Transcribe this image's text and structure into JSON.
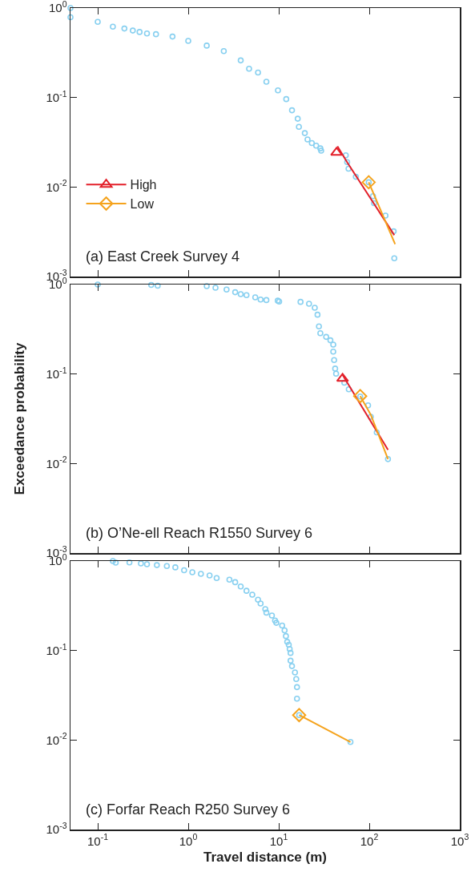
{
  "chart_data": [
    {
      "type": "scatter",
      "log": "xy",
      "grid": false,
      "legend": "bottom left",
      "tick_labels": "y",
      "xlim": [
        0.05,
        1000
      ],
      "ylim": [
        0.001,
        1
      ],
      "xticks": [
        {
          "value": 0.1,
          "label": null
        },
        {
          "value": 1,
          "label": null
        },
        {
          "value": 10,
          "label": null
        },
        {
          "value": 100,
          "label": null
        },
        {
          "value": 1000,
          "label": null
        }
      ],
      "yticks": [
        {
          "value": 0.001,
          "label": "10$^{-3}$"
        },
        {
          "value": 0.01,
          "label": "10$^{-2}$"
        },
        {
          "value": 0.1,
          "label": "10$^{-1}$"
        },
        {
          "value": 1,
          "label": "10$^{0}$"
        }
      ],
      "annotations": [
        "(a) East Creek Survey 4"
      ],
      "series": [
        {
          "type": "scatter",
          "marker": "circle",
          "color": "#88d0f0",
          "x": [
            0.05,
            0.05,
            0.1,
            0.147,
            0.197,
            0.244,
            0.29,
            0.35,
            0.44,
            0.67,
            1,
            1.6,
            2.47,
            3.8,
            4.7,
            5.9,
            7.3,
            9.8,
            12.1,
            14,
            16.2,
            16.7,
            19.4,
            20.8,
            23.2,
            25.9,
            28.8,
            29.4,
            55,
            57,
            59,
            71,
            98.6,
            110,
            113,
            151,
            186,
            189
          ],
          "values": [
            1,
            0.79,
            0.7,
            0.62,
            0.59,
            0.56,
            0.54,
            0.52,
            0.51,
            0.48,
            0.43,
            0.38,
            0.33,
            0.26,
            0.21,
            0.19,
            0.15,
            0.12,
            0.096,
            0.072,
            0.058,
            0.047,
            0.04,
            0.034,
            0.031,
            0.029,
            0.027,
            0.0255,
            0.0226,
            0.019,
            0.016,
            0.013,
            0.0113,
            0.0079,
            0.0066,
            0.0048,
            0.0032,
            0.0016
          ]
        },
        {
          "type": "scatter",
          "name": "High",
          "marker": "triangle",
          "color": "#e3202a",
          "x": [
            43.5
          ],
          "values": [
            0.0243
          ]
        },
        {
          "type": "line",
          "color": "#e3202a",
          "x": [
            44.5,
            57,
            189
          ],
          "values": [
            0.0285,
            0.0189,
            0.0029
          ]
        },
        {
          "type": "scatter",
          "name": "Low",
          "marker": "diamond",
          "color": "#f5a31d",
          "x": [
            98.6
          ],
          "values": [
            0.0113
          ]
        },
        {
          "type": "line",
          "color": "#f5a31d",
          "x": [
            98.6,
            193
          ],
          "values": [
            0.0113,
            0.0023
          ]
        }
      ]
    },
    {
      "type": "scatter",
      "log": "xy",
      "grid": false,
      "legend": false,
      "tick_labels": "y",
      "xlim": [
        0.05,
        1000
      ],
      "ylim": [
        0.001,
        1
      ],
      "ylabel": "Exceedance probability",
      "xticks": [
        {
          "value": 0.1,
          "label": null
        },
        {
          "value": 1,
          "label": null
        },
        {
          "value": 10,
          "label": null
        },
        {
          "value": 100,
          "label": null
        },
        {
          "value": 1000,
          "label": null
        }
      ],
      "yticks": [
        {
          "value": 0.001,
          "label": "10$^{-3}$"
        },
        {
          "value": 0.01,
          "label": "10$^{-2}$"
        },
        {
          "value": 0.1,
          "label": "10$^{-1}$"
        },
        {
          "value": 1,
          "label": "10$^{0}$"
        }
      ],
      "annotations": [
        "(b) O’Ne-ell Reach R1550 Survey 6"
      ],
      "series": [
        {
          "type": "scatter",
          "marker": "circle",
          "color": "#88d0f0",
          "x": [
            0.1,
            0.39,
            0.46,
            1.6,
            2,
            2.65,
            3.3,
            3.8,
            4.4,
            5.5,
            6.3,
            7.3,
            9.75,
            10.1,
            17.4,
            21.6,
            25,
            26.8,
            27.8,
            28.8,
            33.4,
            37.2,
            40,
            40,
            40.9,
            42,
            43,
            53,
            59.4,
            79.4,
            97,
            104,
            121,
            161
          ],
          "values": [
            1,
            0.99,
            0.97,
            0.96,
            0.92,
            0.88,
            0.82,
            0.78,
            0.76,
            0.72,
            0.68,
            0.67,
            0.66,
            0.645,
            0.64,
            0.61,
            0.55,
            0.46,
            0.34,
            0.286,
            0.26,
            0.238,
            0.213,
            0.178,
            0.143,
            0.115,
            0.101,
            0.08,
            0.0675,
            0.056,
            0.0446,
            0.0333,
            0.0223,
            0.0112
          ]
        },
        {
          "type": "scatter",
          "marker": "triangle",
          "color": "#e3202a",
          "x": [
            50.7
          ],
          "values": [
            0.089
          ]
        },
        {
          "type": "line",
          "color": "#e3202a",
          "x": [
            50.7,
            161
          ],
          "values": [
            0.098,
            0.0142
          ]
        },
        {
          "type": "scatter",
          "marker": "diamond",
          "color": "#f5a31d",
          "x": [
            79.4
          ],
          "values": [
            0.0567
          ]
        },
        {
          "type": "line",
          "color": "#f5a31d",
          "x": [
            79.4,
            104,
            161
          ],
          "values": [
            0.0567,
            0.035,
            0.0112
          ]
        }
      ]
    },
    {
      "type": "scatter",
      "log": "xy",
      "grid": false,
      "legend": false,
      "xlim": [
        0.05,
        1000
      ],
      "ylim": [
        0.001,
        1
      ],
      "xlabel": "Travel distance (m)",
      "xticks": [
        {
          "value": 0.1,
          "label": "10$^{-1}$"
        },
        {
          "value": 1,
          "label": "10$^{0}$"
        },
        {
          "value": 10,
          "label": "10$^{1}$"
        },
        {
          "value": 100,
          "label": "10$^{2}$"
        },
        {
          "value": 1000,
          "label": "10$^{3}$"
        }
      ],
      "yticks": [
        {
          "value": 0.001,
          "label": "10$^{-3}$"
        },
        {
          "value": 0.01,
          "label": "10$^{-2}$"
        },
        {
          "value": 0.1,
          "label": "10$^{-1}$"
        },
        {
          "value": 1,
          "label": "10$^{0}$"
        }
      ],
      "annotations": [
        "(c) Forfar Reach R250 Survey 6"
      ],
      "series": [
        {
          "type": "scatter",
          "marker": "circle",
          "color": "#88d0f0",
          "x": [
            0.147,
            0.158,
            0.224,
            0.3,
            0.35,
            0.45,
            0.58,
            0.72,
            0.9,
            1.11,
            1.38,
            1.72,
            2.06,
            2.85,
            3.3,
            3.8,
            4.4,
            5.1,
            5.9,
            6.3,
            7.1,
            7.3,
            8.4,
            9.1,
            9.4,
            10.9,
            11.6,
            12,
            12.4,
            12.9,
            13.2,
            13.5,
            13.5,
            14,
            15.1,
            15.6,
            15.9,
            15.9,
            16.8,
            62
          ],
          "values": [
            1,
            0.96,
            0.965,
            0.94,
            0.92,
            0.9,
            0.88,
            0.85,
            0.79,
            0.75,
            0.72,
            0.69,
            0.645,
            0.62,
            0.58,
            0.52,
            0.465,
            0.42,
            0.37,
            0.335,
            0.29,
            0.265,
            0.246,
            0.216,
            0.204,
            0.19,
            0.168,
            0.145,
            0.125,
            0.116,
            0.104,
            0.094,
            0.077,
            0.067,
            0.057,
            0.048,
            0.039,
            0.029,
            0.019,
            0.0095
          ]
        },
        {
          "type": "scatter",
          "marker": "diamond",
          "color": "#f5a31d",
          "x": [
            16.8
          ],
          "values": [
            0.019
          ]
        },
        {
          "type": "line",
          "color": "#f5a31d",
          "x": [
            16.8,
            62
          ],
          "values": [
            0.019,
            0.0095
          ]
        }
      ]
    }
  ]
}
